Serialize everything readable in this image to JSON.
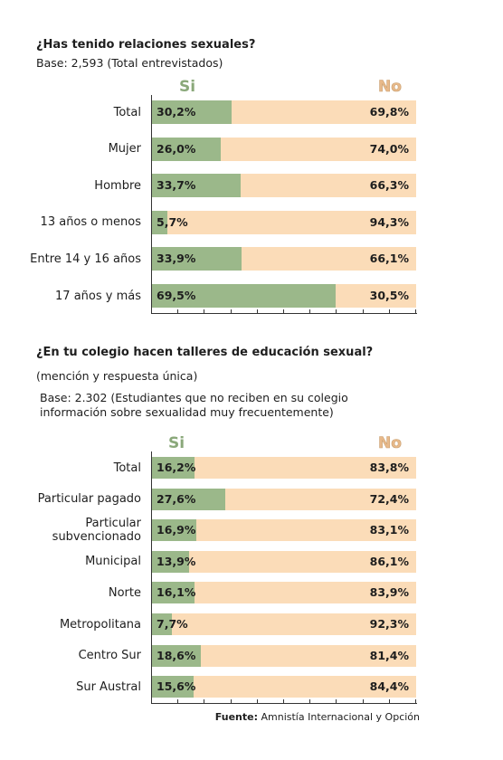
{
  "charts": [
    {
      "title": "¿Has tenido relaciones sexuales?",
      "notes": [
        "Base: 2,593 (Total entrevistados)"
      ],
      "legend": [
        "Si",
        "No"
      ]
    },
    {
      "title": "¿En tu colegio hacen talleres de educación sexual?",
      "notes": [
        "(mención y respuesta única)",
        "Base: 2.302 (Estudiantes que no reciben en su colegio",
        "información sobre sexualidad muy frecuentemente)"
      ],
      "legend": [
        "Si",
        "No"
      ]
    }
  ],
  "source": {
    "label": "Fuente:",
    "text": "Amnistía Internacional y Opción"
  },
  "colors": {
    "si": "#9bb88a",
    "no": "#fbdcb8",
    "si_legend": "#8aa87a",
    "no_legend": "#e8b98a"
  },
  "chart_data": [
    {
      "type": "bar",
      "orientation": "horizontal",
      "stacked": true,
      "title": "¿Has tenido relaciones sexuales?",
      "categories": [
        "Total",
        "Mujer",
        "Hombre",
        "13 años o menos",
        "Entre 14 y 16 años",
        "17 años y más"
      ],
      "series": [
        {
          "name": "Si",
          "values": [
            30.2,
            26.0,
            33.7,
            5.7,
            33.9,
            69.5
          ],
          "labels": [
            "30,2%",
            "26,0%",
            "33,7%",
            "5,7%",
            "33,9%",
            "69,5%"
          ]
        },
        {
          "name": "No",
          "values": [
            69.8,
            74.0,
            66.3,
            94.3,
            66.1,
            30.5
          ],
          "labels": [
            "69,8%",
            "74,0%",
            "66,3%",
            "94,3%",
            "66,1%",
            "30,5%"
          ]
        }
      ],
      "xlim": [
        0,
        100
      ]
    },
    {
      "type": "bar",
      "orientation": "horizontal",
      "stacked": true,
      "title": "¿En tu colegio hacen talleres de educación sexual?",
      "categories": [
        "Total",
        "Particular pagado",
        "Particular\nsubvencionado",
        "Municipal",
        "Norte",
        "Metropolitana",
        "Centro Sur",
        "Sur Austral"
      ],
      "series": [
        {
          "name": "Si",
          "values": [
            16.2,
            27.6,
            16.9,
            13.9,
            16.1,
            7.7,
            18.6,
            15.6
          ],
          "labels": [
            "16,2%",
            "27,6%",
            "16,9%",
            "13,9%",
            "16,1%",
            "7,7%",
            "18,6%",
            "15,6%"
          ]
        },
        {
          "name": "No",
          "values": [
            83.8,
            72.4,
            83.1,
            86.1,
            83.9,
            92.3,
            81.4,
            84.4
          ],
          "labels": [
            "83,8%",
            "72,4%",
            "83,1%",
            "86,1%",
            "83,9%",
            "92,3%",
            "81,4%",
            "84,4%"
          ]
        }
      ],
      "xlim": [
        0,
        100
      ]
    }
  ]
}
